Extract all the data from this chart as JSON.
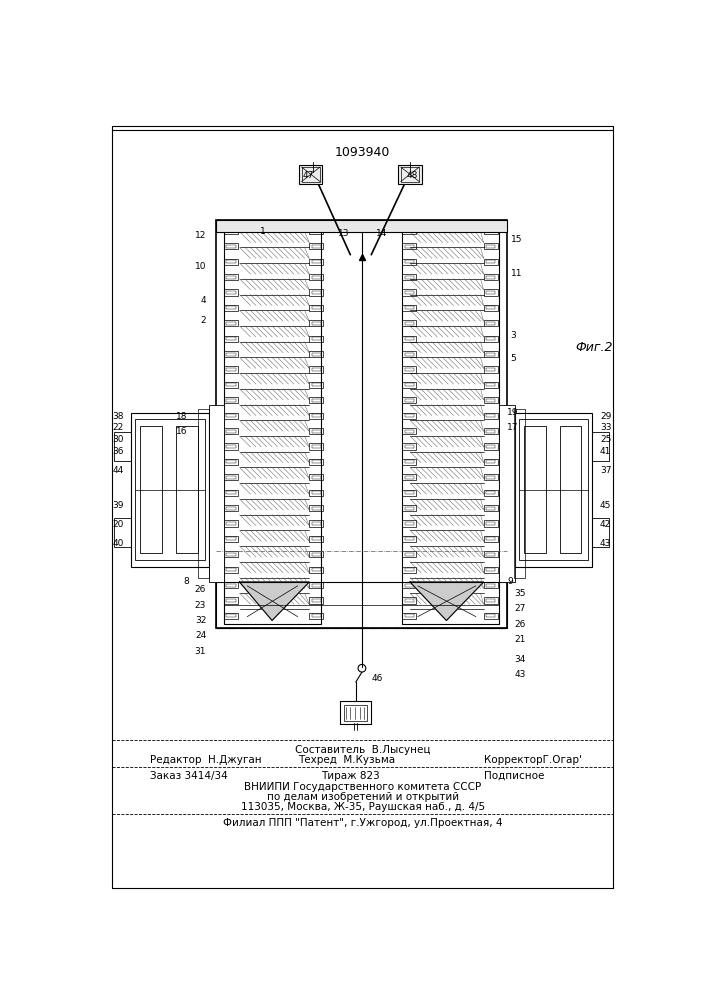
{
  "patent_number": "1093940",
  "fig_label": "Фиг.2",
  "background_color": "#ffffff",
  "footer": {
    "col1_line1": "Редактор  Н.Джуган",
    "col2_line1": "Составитель  В.Лысунец",
    "col2_line2": "Техред  М.Кузьма",
    "col3_line2": "КорректорГ.Огар'",
    "row2_col1": "Заказ 3414/34",
    "row2_col2": "Тираж 823",
    "row2_col3": "Подписное",
    "row3": "ВНИИПИ Государственного комитета СССР",
    "row4": "по делам изобретений и открытий",
    "row5": "113035, Москва, Ж-35, Раушская наб., д. 4/5",
    "row6": "Филиал ППП \"Патент\", г.Ужгород, ул.Проектная, 4"
  }
}
